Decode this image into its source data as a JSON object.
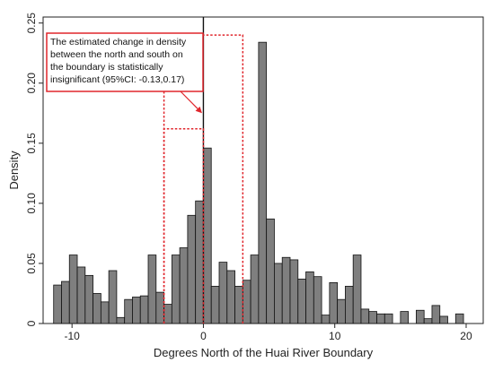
{
  "chart_data": {
    "type": "bar",
    "title": "",
    "xlabel": "Degrees North of the Huai River Boundary",
    "ylabel": "Density",
    "xlim": [
      -12.2,
      21.3
    ],
    "ylim": [
      0,
      0.255
    ],
    "xticks": [
      -10,
      0,
      10,
      20
    ],
    "xtick_labels": [
      "-10",
      "0",
      "10",
      "20"
    ],
    "yticks": [
      0,
      0.05,
      0.1,
      0.15,
      0.2,
      0.25
    ],
    "ytick_labels": [
      "0",
      "0.05",
      "0.10",
      "0.15",
      "0.20",
      "0.25"
    ],
    "bin_width": 0.6,
    "boundary_x": 0,
    "bins": [
      {
        "x": -11.1,
        "y": 0.032
      },
      {
        "x": -10.5,
        "y": 0.035
      },
      {
        "x": -9.9,
        "y": 0.057
      },
      {
        "x": -9.3,
        "y": 0.047
      },
      {
        "x": -8.7,
        "y": 0.04
      },
      {
        "x": -8.1,
        "y": 0.025
      },
      {
        "x": -7.5,
        "y": 0.018
      },
      {
        "x": -6.9,
        "y": 0.044
      },
      {
        "x": -6.3,
        "y": 0.005
      },
      {
        "x": -5.7,
        "y": 0.02
      },
      {
        "x": -5.1,
        "y": 0.022
      },
      {
        "x": -4.5,
        "y": 0.023
      },
      {
        "x": -3.9,
        "y": 0.057
      },
      {
        "x": -3.3,
        "y": 0.026
      },
      {
        "x": -2.7,
        "y": 0.016
      },
      {
        "x": -2.1,
        "y": 0.057
      },
      {
        "x": -1.5,
        "y": 0.063
      },
      {
        "x": -0.9,
        "y": 0.09
      },
      {
        "x": -0.3,
        "y": 0.102
      },
      {
        "x": 0.3,
        "y": 0.146
      },
      {
        "x": 0.9,
        "y": 0.031
      },
      {
        "x": 1.5,
        "y": 0.051
      },
      {
        "x": 2.1,
        "y": 0.044
      },
      {
        "x": 2.7,
        "y": 0.031
      },
      {
        "x": 3.3,
        "y": 0.036
      },
      {
        "x": 3.9,
        "y": 0.057
      },
      {
        "x": 4.5,
        "y": 0.234
      },
      {
        "x": 5.1,
        "y": 0.087
      },
      {
        "x": 5.7,
        "y": 0.05
      },
      {
        "x": 6.3,
        "y": 0.055
      },
      {
        "x": 6.9,
        "y": 0.053
      },
      {
        "x": 7.5,
        "y": 0.037
      },
      {
        "x": 8.1,
        "y": 0.043
      },
      {
        "x": 8.7,
        "y": 0.039
      },
      {
        "x": 9.3,
        "y": 0.007
      },
      {
        "x": 9.9,
        "y": 0.034
      },
      {
        "x": 10.5,
        "y": 0.02
      },
      {
        "x": 11.1,
        "y": 0.031
      },
      {
        "x": 11.7,
        "y": 0.057
      },
      {
        "x": 12.3,
        "y": 0.012
      },
      {
        "x": 12.9,
        "y": 0.01
      },
      {
        "x": 13.5,
        "y": 0.008
      },
      {
        "x": 14.1,
        "y": 0.008
      },
      {
        "x": 15.3,
        "y": 0.01
      },
      {
        "x": 16.5,
        "y": 0.011
      },
      {
        "x": 17.1,
        "y": 0.004
      },
      {
        "x": 17.7,
        "y": 0.015
      },
      {
        "x": 18.3,
        "y": 0.006
      },
      {
        "x": 19.5,
        "y": 0.008
      }
    ],
    "ci_box_outer": {
      "x0": -3.0,
      "x1": 3.0,
      "y": 0.24
    },
    "ci_box_inner": {
      "x0": -3.0,
      "x1": 0.0,
      "y": 0.162
    },
    "annotation": {
      "lines": [
        "The estimated change in density",
        "between the north and south on",
        "the boundary is statistically",
        " insignificant (95%CI: -0.13,0.17)"
      ],
      "arrow_to": {
        "x": -0.1,
        "y": 0.175
      }
    },
    "colors": {
      "bar": "#7f7f7f",
      "annotation": "#e0262c",
      "boundary": "#111111"
    },
    "grid": false,
    "legend": "none"
  }
}
